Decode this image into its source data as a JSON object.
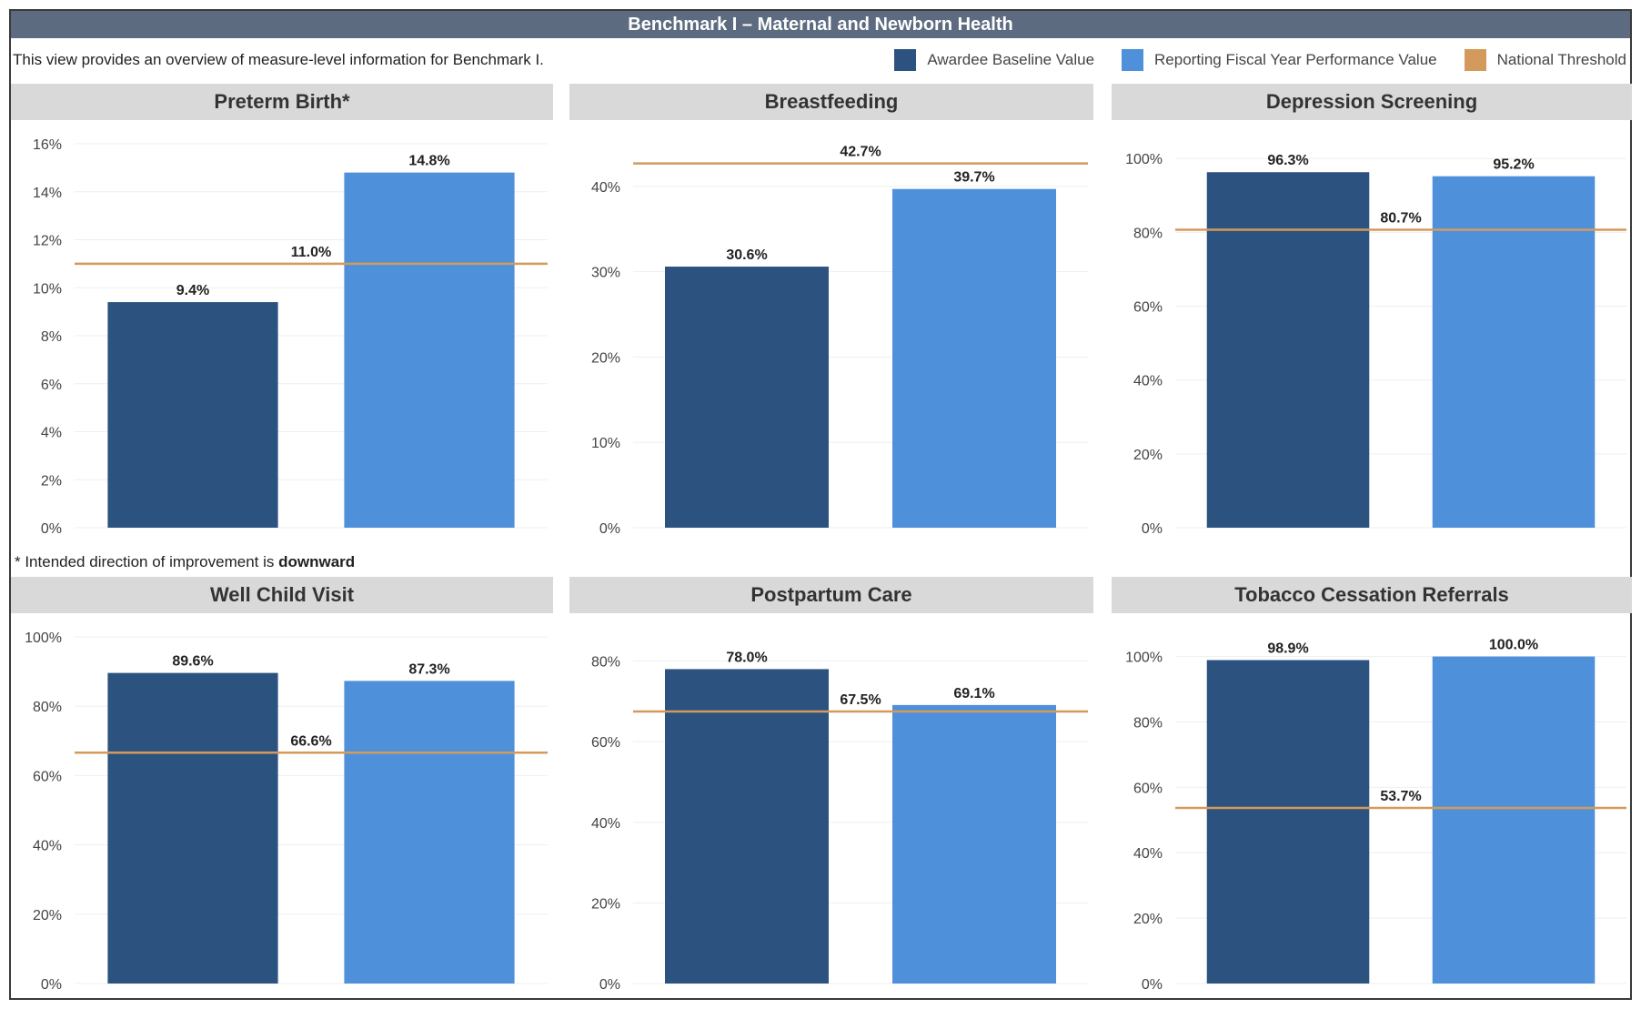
{
  "title": "Benchmark I – Maternal and Newborn Health",
  "description": "This view provides an overview of measure-level information for Benchmark I.",
  "legend": [
    {
      "label": "Awardee Baseline Value",
      "color": "#2c5380"
    },
    {
      "label": "Reporting Fiscal Year Performance Value",
      "color": "#4f90db"
    },
    {
      "label": "National Threshold",
      "color": "#d49a5c"
    }
  ],
  "footnote": {
    "prefix": "* Intended direction of improvement is ",
    "emphasis": "downward"
  },
  "chart_data": [
    {
      "type": "bar",
      "title": "Preterm Birth*",
      "categories": [
        "Awardee Baseline Value",
        "Reporting Fiscal Year Performance Value"
      ],
      "values": [
        9.4,
        14.8
      ],
      "value_labels": [
        "9.4%",
        "14.8%"
      ],
      "threshold": 11.0,
      "threshold_label": "11.0%",
      "ylim": [
        0,
        16
      ],
      "yticks": [
        0,
        2,
        4,
        6,
        8,
        10,
        12,
        14,
        16
      ],
      "ytick_labels": [
        "0%",
        "2%",
        "4%",
        "6%",
        "8%",
        "10%",
        "12%",
        "14%",
        "16%"
      ]
    },
    {
      "type": "bar",
      "title": "Breastfeeding",
      "categories": [
        "Awardee Baseline Value",
        "Reporting Fiscal Year Performance Value"
      ],
      "values": [
        30.6,
        39.7
      ],
      "value_labels": [
        "30.6%",
        "39.7%"
      ],
      "threshold": 42.7,
      "threshold_label": "42.7%",
      "ylim": [
        0,
        45
      ],
      "yticks": [
        0,
        10,
        20,
        30,
        40
      ],
      "ytick_labels": [
        "0%",
        "10%",
        "20%",
        "30%",
        "40%"
      ]
    },
    {
      "type": "bar",
      "title": "Depression Screening",
      "categories": [
        "Awardee Baseline Value",
        "Reporting Fiscal Year Performance Value"
      ],
      "values": [
        96.3,
        95.2
      ],
      "value_labels": [
        "96.3%",
        "95.2%"
      ],
      "threshold": 80.7,
      "threshold_label": "80.7%",
      "ylim": [
        0,
        104
      ],
      "yticks": [
        0,
        20,
        40,
        60,
        80,
        100
      ],
      "ytick_labels": [
        "0%",
        "20%",
        "40%",
        "60%",
        "80%",
        "100%"
      ]
    },
    {
      "type": "bar",
      "title": "Well Child Visit",
      "categories": [
        "Awardee Baseline Value",
        "Reporting Fiscal Year Performance Value"
      ],
      "values": [
        89.6,
        87.3
      ],
      "value_labels": [
        "89.6%",
        "87.3%"
      ],
      "threshold": 66.6,
      "threshold_label": "66.6%",
      "ylim": [
        0,
        100
      ],
      "yticks": [
        0,
        20,
        40,
        60,
        80,
        100
      ],
      "ytick_labels": [
        "0%",
        "20%",
        "40%",
        "60%",
        "80%",
        "100%"
      ]
    },
    {
      "type": "bar",
      "title": "Postpartum Care",
      "categories": [
        "Awardee Baseline Value",
        "Reporting Fiscal Year Performance Value"
      ],
      "values": [
        78.0,
        69.1
      ],
      "value_labels": [
        "78.0%",
        "69.1%"
      ],
      "threshold": 67.5,
      "threshold_label": "67.5%",
      "ylim": [
        0,
        86
      ],
      "yticks": [
        0,
        20,
        40,
        60,
        80
      ],
      "ytick_labels": [
        "0%",
        "20%",
        "40%",
        "60%",
        "80%"
      ]
    },
    {
      "type": "bar",
      "title": "Tobacco Cessation Referrals",
      "categories": [
        "Awardee Baseline Value",
        "Reporting Fiscal Year Performance Value"
      ],
      "values": [
        98.9,
        100.0
      ],
      "value_labels": [
        "98.9%",
        "100.0%"
      ],
      "threshold": 53.7,
      "threshold_label": "53.7%",
      "ylim": [
        0,
        106
      ],
      "yticks": [
        0,
        20,
        40,
        60,
        80,
        100
      ],
      "ytick_labels": [
        "0%",
        "20%",
        "40%",
        "60%",
        "80%",
        "100%"
      ]
    }
  ]
}
